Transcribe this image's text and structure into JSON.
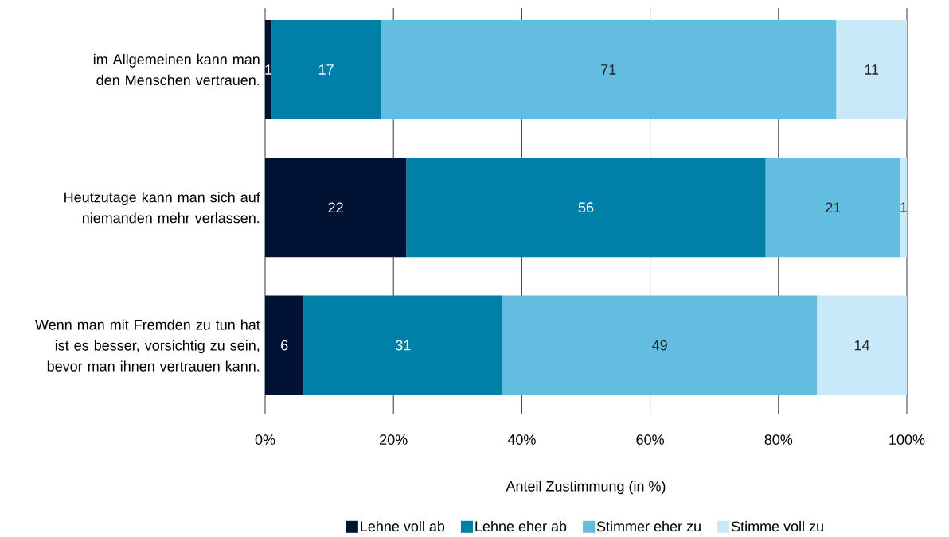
{
  "chart_data": {
    "type": "bar",
    "orientation": "horizontal",
    "stacked": true,
    "xlabel": "Anteil Zustimmung (in %)",
    "categories": [
      "im Allgemeinen kann man den Menschen vertrauen.",
      "Heutzutage kann man sich auf niemanden mehr verlassen.",
      "Wenn man mit Fremden zu tun hat ist es besser, vorsichtig zu sein, bevor man ihnen vertrauen kann."
    ],
    "series": [
      {
        "name": "Lehne voll ab",
        "color": "#001334",
        "values": [
          1,
          22,
          6
        ]
      },
      {
        "name": "Lehne eher ab",
        "color": "#0080a8",
        "values": [
          17,
          56,
          31
        ]
      },
      {
        "name": "Stimmer eher zu",
        "color": "#63bde1",
        "values": [
          71,
          21,
          49
        ]
      },
      {
        "name": "Stimme voll zu",
        "color": "#c8e9f8",
        "values": [
          11,
          1,
          14
        ]
      }
    ],
    "xlim": [
      0,
      100
    ],
    "xticks": [
      {
        "value": 0,
        "label": "0%"
      },
      {
        "value": 20,
        "label": "20%"
      },
      {
        "value": 40,
        "label": "40%"
      },
      {
        "value": 60,
        "label": "60%"
      },
      {
        "value": 80,
        "label": "80%"
      },
      {
        "value": 100,
        "label": "100%"
      }
    ],
    "data_labels": true,
    "grid": "x",
    "legend": "bottom"
  }
}
